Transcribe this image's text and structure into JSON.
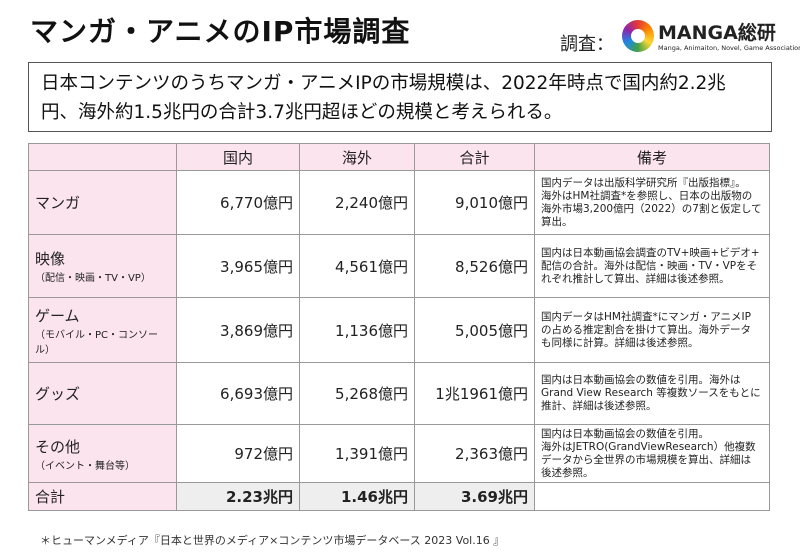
{
  "header": {
    "title": "マンガ・アニメのIP市場調査",
    "survey_label": "調査：",
    "logo_name": "MANGA総研",
    "logo_sub": "Manga, Animaiton, Novel, Game Association"
  },
  "summary": "日本コンテンツのうちマンガ・アニメIPの市場規模は、2022年時点で国内約2.2兆円、海外約1.5兆円の合計3.7兆円超ほどの規模と考えられる。",
  "table": {
    "columns": [
      "国内",
      "海外",
      "合計",
      "備考"
    ],
    "rows": [
      {
        "label": "マンガ",
        "sub": null,
        "cells": [
          "6,770億円",
          "2,240億円",
          "9,010億円"
        ],
        "note": [
          "国内データは出版科学研究所『出版指標』。",
          "海外はHM社調査*を参照し、日本の出版物の",
          "海外市場3,200億円（2022）の7割と仮定して",
          "算出。"
        ]
      },
      {
        "label": "映像",
        "sub": "（配信・映画・TV・VP）",
        "cells": [
          "3,965億円",
          "4,561億円",
          "8,526億円"
        ],
        "note": [
          "国内は日本動画協会調査のTV+映画+ビデオ+",
          "配信の合計。海外は配信・映画・TV・VPをそ",
          "れぞれ推計して算出、詳細は後述参照。"
        ]
      },
      {
        "label": "ゲーム",
        "sub": "（モバイル・PC・コンソール）",
        "cells": [
          "3,869億円",
          "1,136億円",
          "5,005億円"
        ],
        "note": [
          "国内データはHM社調査*にマンガ・アニメIP",
          "の占める推定割合を掛けて算出。海外データ",
          "も同様に計算。詳細は後述参照。"
        ]
      },
      {
        "label": "グッズ",
        "sub": null,
        "cells": [
          "6,693億円",
          "5,268億円",
          "1兆1961億円"
        ],
        "note": [
          "国内は日本動画協会の数値を引用。海外は",
          "Grand View Research 等複数ソースをもとに",
          "推計、詳細は後述参照。"
        ]
      },
      {
        "label": "その他",
        "sub": "（イベント・舞台等）",
        "cells": [
          "972億円",
          "1,391億円",
          "2,363億円"
        ],
        "note": [
          "国内は日本動画協会の数値を引用。",
          "海外はJETRO(GrandViewResearch）他複数",
          "データから全世界の市場規模を算出、詳細は",
          "後述参照。"
        ]
      }
    ],
    "total": {
      "label": "合計",
      "cells": [
        "2.23兆円",
        "1.46兆円",
        "3.69兆円"
      ]
    }
  },
  "source": "＊ヒューマンメディア『日本と世界のメディア×コンテンツ市場データベース 2023 Vol.16 』"
}
